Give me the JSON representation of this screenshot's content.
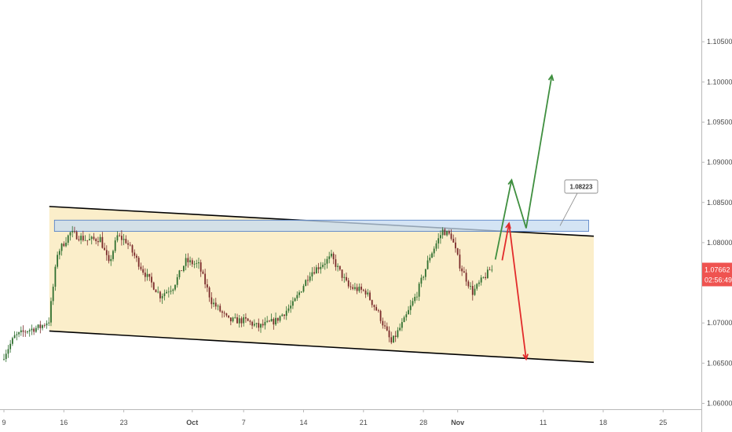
{
  "chart_data": {
    "type": "candlestick",
    "y_axis": {
      "position": "right",
      "range": [
        1.056,
        1.1075
      ],
      "ticks": [
        "1.10500",
        "1.10000",
        "1.09500",
        "1.09000",
        "1.08500",
        "1.08000",
        "1.07500",
        "1.07000",
        "1.06500",
        "1.06000"
      ],
      "tick_values": [
        1.105,
        1.1,
        1.095,
        1.09,
        1.085,
        1.08,
        1.075,
        1.07,
        1.065,
        1.06
      ]
    },
    "x_axis": {
      "labels": [
        {
          "text": "9",
          "day": 0,
          "bold": false
        },
        {
          "text": "16",
          "day": 7,
          "bold": false
        },
        {
          "text": "23",
          "day": 14,
          "bold": false
        },
        {
          "text": "Oct",
          "day": 22,
          "bold": true
        },
        {
          "text": "7",
          "day": 28,
          "bold": false
        },
        {
          "text": "14",
          "day": 35,
          "bold": false
        },
        {
          "text": "21",
          "day": 42,
          "bold": false
        },
        {
          "text": "28",
          "day": 49,
          "bold": false
        },
        {
          "text": "Nov",
          "day": 53,
          "bold": true
        },
        {
          "text": "11",
          "day": 63,
          "bold": false
        },
        {
          "text": "18",
          "day": 70,
          "bold": false
        },
        {
          "text": "25",
          "day": 77,
          "bold": false
        }
      ],
      "range": [
        0,
        81.6
      ]
    },
    "price_key_points": [
      [
        0.0,
        1.0655
      ],
      [
        1.5,
        1.0683
      ],
      [
        3.0,
        1.0691
      ],
      [
        4.5,
        1.0695
      ],
      [
        5.5,
        1.0703
      ],
      [
        6.5,
        1.0787
      ],
      [
        8.0,
        1.0812
      ],
      [
        10.0,
        1.0803
      ],
      [
        11.5,
        1.0805
      ],
      [
        12.5,
        1.0773
      ],
      [
        13.5,
        1.0808
      ],
      [
        14.5,
        1.0802
      ],
      [
        16.5,
        1.0765
      ],
      [
        18.5,
        1.0734
      ],
      [
        20.0,
        1.0745
      ],
      [
        21.5,
        1.0777
      ],
      [
        23.0,
        1.0772
      ],
      [
        24.5,
        1.0727
      ],
      [
        26.5,
        1.0703
      ],
      [
        28.5,
        1.0703
      ],
      [
        30.0,
        1.0695
      ],
      [
        32.0,
        1.0703
      ],
      [
        34.0,
        1.0723
      ],
      [
        36.0,
        1.0762
      ],
      [
        38.5,
        1.0782
      ],
      [
        40.5,
        1.0745
      ],
      [
        42.5,
        1.0739
      ],
      [
        44.0,
        1.0712
      ],
      [
        45.5,
        1.0675
      ],
      [
        47.0,
        1.0703
      ],
      [
        48.5,
        1.0737
      ],
      [
        50.0,
        1.0783
      ],
      [
        51.5,
        1.0815
      ],
      [
        52.5,
        1.0808
      ],
      [
        53.5,
        1.0772
      ],
      [
        55.0,
        1.0738
      ],
      [
        56.2,
        1.0755
      ],
      [
        57.0,
        1.0765
      ]
    ],
    "channel": {
      "upper": {
        "start": [
          5.3,
          1.0845
        ],
        "end": [
          68.9,
          1.0808
        ]
      },
      "lower": {
        "start": [
          5.3,
          1.069
        ],
        "end": [
          68.9,
          1.0651
        ]
      }
    },
    "resistance_zone": {
      "range": [
        1.0814,
        1.0828
      ],
      "from_day": 5.9,
      "to_day": 68.3
    },
    "level_label": "1.08223",
    "current_price": {
      "value": 1.07662,
      "label": "1.07662",
      "countdown": "02:56:49"
    },
    "projections": {
      "bullish": [
        [
          57.4,
          1.0779
        ],
        [
          59.3,
          1.0878
        ],
        [
          61.0,
          1.0818
        ],
        [
          64.0,
          1.1008
        ]
      ],
      "bearish": [
        [
          58.2,
          1.0778
        ],
        [
          59.0,
          1.0824
        ],
        [
          61.0,
          1.0655
        ]
      ]
    },
    "colors": {
      "channel_fill": "#fbeeca",
      "channel_line": "#000000",
      "zone_fill": "#c6dbf0",
      "zone_border": "#4a78c2",
      "bull": "#3f8f3f",
      "bear": "#e22b2b",
      "badge": "#ef5350",
      "candle_up": "#2f6f2f",
      "candle_down": "#7a2a2a"
    }
  }
}
